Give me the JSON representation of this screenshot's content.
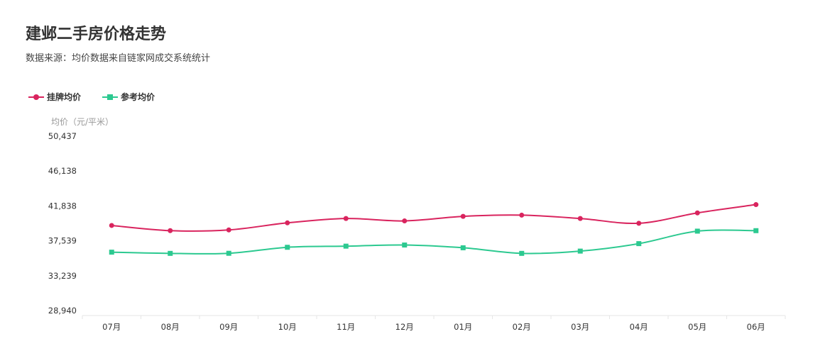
{
  "title": "建邺二手房价格走势",
  "subtitle": "数据来源：均价数据来自链家网成交系统统计",
  "y_unit_label": "均价（元/平米）",
  "chart_data": {
    "type": "line",
    "title": "建邺二手房价格走势",
    "subtitle": "数据来源：均价数据来自链家网成交系统统计",
    "ylabel": "均价（元/平米）",
    "xlabel": "",
    "categories": [
      "07月",
      "08月",
      "09月",
      "10月",
      "11月",
      "12月",
      "01月",
      "02月",
      "03月",
      "04月",
      "05月",
      "06月"
    ],
    "yticks": [
      50437,
      46138,
      41838,
      37539,
      33239,
      28940
    ],
    "ytick_labels": [
      "50,437",
      "46,138",
      "41,838",
      "37,539",
      "33,239",
      "28,940"
    ],
    "ylim": [
      28940,
      50437
    ],
    "grid": false,
    "legend_position": "top-left",
    "series": [
      {
        "name": "挂牌均价",
        "color": "#d9245e",
        "marker": "circle",
        "values": [
          39430,
          38790,
          38880,
          39750,
          40290,
          39990,
          40550,
          40700,
          40290,
          39700,
          40980,
          42000
        ]
      },
      {
        "name": "参考均价",
        "color": "#2cc990",
        "marker": "square",
        "values": [
          36140,
          35990,
          36000,
          36740,
          36880,
          37020,
          36680,
          35990,
          36270,
          37190,
          38730,
          38790
        ]
      }
    ]
  }
}
